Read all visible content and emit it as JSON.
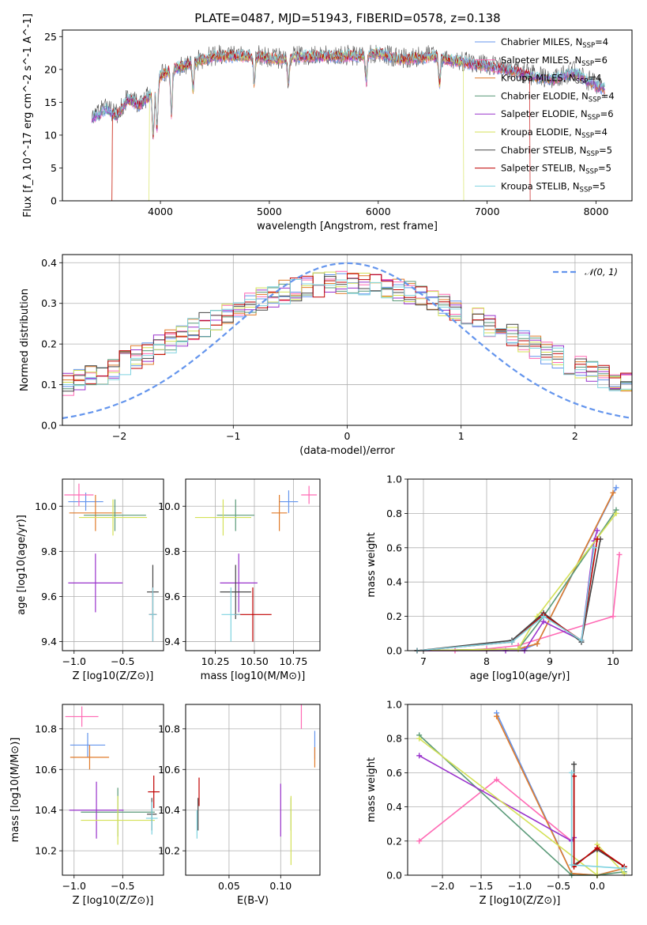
{
  "figure": {
    "title": "PLATE=0487, MJD=51943, FIBERID=0578, z=0.138"
  },
  "series": [
    {
      "name": "Chabrier MILES, N_SSP=4",
      "legend_main": "Chabrier MILES, N",
      "legend_sub": "SSP",
      "legend_tail": "=4",
      "color": "#6495ed"
    },
    {
      "name": "Salpeter MILES, N_SSP=6",
      "legend_main": "Salpeter MILES, N",
      "legend_sub": "SSP",
      "legend_tail": "=6",
      "color": "#ff69b4"
    },
    {
      "name": "Kroupa MILES, N_SSP=4",
      "legend_main": "Kroupa MILES, N",
      "legend_sub": "SSP",
      "legend_tail": "=4",
      "color": "#e07b2a"
    },
    {
      "name": "Chabrier ELODIE, N_SSP=4",
      "legend_main": "Chabrier ELODIE, N",
      "legend_sub": "SSP",
      "legend_tail": "=4",
      "color": "#5a9a78"
    },
    {
      "name": "Salpeter ELODIE, N_SSP=6",
      "legend_main": "Salpeter ELODIE, N",
      "legend_sub": "SSP",
      "legend_tail": "=6",
      "color": "#9932cc"
    },
    {
      "name": "Kroupa ELODIE, N_SSP=4",
      "legend_main": "Kroupa ELODIE, N",
      "legend_sub": "SSP",
      "legend_tail": "=4",
      "color": "#d4e157"
    },
    {
      "name": "Chabrier STELIB, N_SSP=5",
      "legend_main": "Chabrier STELIB, N",
      "legend_sub": "SSP",
      "legend_tail": "=5",
      "color": "#444444"
    },
    {
      "name": "Salpeter STELIB, N_SSP=5",
      "legend_main": "Salpeter STELIB, N",
      "legend_sub": "SSP",
      "legend_tail": "=5",
      "color": "#c00000"
    },
    {
      "name": "Kroupa STELIB, N_SSP=5",
      "legend_main": "Kroupa STELIB, N",
      "legend_sub": "SSP",
      "legend_tail": "=5",
      "color": "#7fd3e0"
    }
  ],
  "chart_data": [
    {
      "id": "spectrum",
      "type": "line",
      "xlabel": "wavelength [Angstrom, rest frame]",
      "ylabel": "Flux [f_λ 10^-17 erg cm^-2 s^-1 A^-1]",
      "xlim": [
        3100,
        8330
      ],
      "ylim": [
        0,
        26
      ],
      "xticks": [
        4000,
        5000,
        6000,
        7000,
        8000
      ],
      "yticks": [
        0,
        5,
        10,
        15,
        20,
        25
      ],
      "grid": false,
      "legend": "right",
      "spectrum_shape": {
        "x": [
          3370,
          3500,
          3600,
          3700,
          3800,
          3900,
          4000,
          4100,
          4200,
          4300,
          4400,
          4500,
          4700,
          4900,
          5100,
          5300,
          5500,
          5800,
          6000,
          6200,
          6500,
          6800,
          7000,
          7200,
          7400,
          7600,
          7800,
          8000,
          8080
        ],
        "y": [
          12.5,
          14.0,
          13.0,
          15.5,
          14.5,
          16.0,
          19.0,
          20.0,
          20.5,
          21.0,
          21.5,
          22.0,
          22.0,
          22.0,
          21.5,
          22.0,
          22.0,
          22.0,
          22.5,
          21.5,
          22.0,
          21.0,
          20.5,
          20.0,
          19.0,
          18.5,
          19.5,
          17.5,
          17.0
        ]
      },
      "absorption_lines": [
        3934,
        3969,
        4102,
        4300,
        4861,
        5175,
        5890,
        6563
      ],
      "cutoffs": [
        {
          "series": 2,
          "x_start": 3560
        },
        {
          "series": 5,
          "x_start": 3900,
          "x_end": 6780
        },
        {
          "series": 7,
          "x_start": 3560,
          "x_end": 7390
        }
      ]
    },
    {
      "id": "residuals",
      "type": "histogram",
      "xlabel": "(data-model)/error",
      "ylabel": "Normed distribution",
      "xlim": [
        -2.5,
        2.5
      ],
      "ylim": [
        0,
        0.42
      ],
      "xticks": [
        -2,
        -1,
        0,
        1,
        2
      ],
      "yticks": [
        0,
        0.1,
        0.2,
        0.3,
        0.4
      ],
      "grid": true,
      "bin_width": 0.1,
      "reference": {
        "label": "𝒩(0, 1)",
        "type": "gaussian",
        "mean": 0,
        "sigma": 1,
        "color": "#6495ed"
      }
    },
    {
      "id": "age_vs_z",
      "type": "errorbar",
      "xlabel": "Z [log10(Z/Z⊙)]",
      "ylabel": "age [log10(age/yr)]",
      "xlim": [
        -1.12,
        -0.08
      ],
      "ylim": [
        9.36,
        10.12
      ],
      "xticks": [
        -1.0,
        -0.5
      ],
      "yticks": [
        9.4,
        9.6,
        9.8,
        10.0
      ],
      "grid": true,
      "points": [
        {
          "s": 0,
          "x": -0.88,
          "xe": 0.18,
          "y": 10.02,
          "ye": 0.04
        },
        {
          "s": 1,
          "x": -0.95,
          "xe": 0.15,
          "y": 10.05,
          "ye": 0.05
        },
        {
          "s": 2,
          "x": -0.78,
          "xe": 0.27,
          "y": 9.97,
          "ye": 0.08
        },
        {
          "s": 3,
          "x": -0.58,
          "xe": 0.32,
          "y": 9.96,
          "ye": 0.07
        },
        {
          "s": 4,
          "x": -0.78,
          "xe": 0.28,
          "y": 9.66,
          "ye": 0.13
        },
        {
          "s": 5,
          "x": -0.6,
          "xe": 0.35,
          "y": 9.95,
          "ye": 0.08
        },
        {
          "s": 6,
          "x": -0.19,
          "xe": 0.06,
          "y": 9.62,
          "ye": 0.12
        },
        {
          "s": 7,
          "x": -0.19,
          "xe": 0.04,
          "y": 9.52,
          "ye": 0.12
        },
        {
          "s": 8,
          "x": -0.19,
          "xe": 0.04,
          "y": 9.52,
          "ye": 0.12
        }
      ]
    },
    {
      "id": "age_vs_mass",
      "type": "errorbar",
      "xlabel": "mass [log10(M/M⊙)]",
      "ylabel": "",
      "xlim": [
        10.06,
        10.92
      ],
      "ylim": [
        9.36,
        10.12
      ],
      "xticks": [
        10.25,
        10.5,
        10.75
      ],
      "yticks": [
        9.4,
        9.6,
        9.8,
        10.0
      ],
      "grid": true,
      "points": [
        {
          "s": 0,
          "x": 10.72,
          "xe": 0.06,
          "y": 10.02,
          "ye": 0.05
        },
        {
          "s": 1,
          "x": 10.85,
          "xe": 0.05,
          "y": 10.05,
          "ye": 0.04
        },
        {
          "s": 2,
          "x": 10.66,
          "xe": 0.05,
          "y": 9.97,
          "ye": 0.08
        },
        {
          "s": 3,
          "x": 10.38,
          "xe": 0.12,
          "y": 9.96,
          "ye": 0.07
        },
        {
          "s": 4,
          "x": 10.4,
          "xe": 0.12,
          "y": 9.66,
          "ye": 0.13
        },
        {
          "s": 5,
          "x": 10.3,
          "xe": 0.18,
          "y": 9.95,
          "ye": 0.08
        },
        {
          "s": 6,
          "x": 10.38,
          "xe": 0.1,
          "y": 9.62,
          "ye": 0.12
        },
        {
          "s": 7,
          "x": 10.49,
          "xe": 0.12,
          "y": 9.52,
          "ye": 0.12
        },
        {
          "s": 8,
          "x": 10.35,
          "xe": 0.06,
          "y": 9.52,
          "ye": 0.12
        }
      ]
    },
    {
      "id": "mass_weight_vs_age",
      "type": "line",
      "xlabel": "age [log10(age/yr)]",
      "ylabel": "mass weight",
      "xlim": [
        6.75,
        10.3
      ],
      "ylim": [
        0,
        1.0
      ],
      "xticks": [
        7,
        8,
        9,
        10
      ],
      "yticks": [
        0.0,
        0.2,
        0.4,
        0.6,
        0.8,
        1.0
      ],
      "grid": true,
      "series_values": [
        {
          "s": 0,
          "x": [
            6.9,
            8.6,
            8.8,
            10.05
          ],
          "y": [
            0.0,
            0.01,
            0.04,
            0.95
          ]
        },
        {
          "s": 1,
          "x": [
            6.9,
            7.5,
            8.0,
            8.5,
            10.0,
            10.1
          ],
          "y": [
            0.0,
            0.0,
            0.01,
            0.03,
            0.2,
            0.56
          ]
        },
        {
          "s": 2,
          "x": [
            6.9,
            8.5,
            8.8,
            10.0
          ],
          "y": [
            0.0,
            0.01,
            0.04,
            0.92
          ]
        },
        {
          "s": 3,
          "x": [
            6.9,
            8.5,
            8.9,
            10.05
          ],
          "y": [
            0.0,
            0.01,
            0.2,
            0.82
          ]
        },
        {
          "s": 4,
          "x": [
            6.9,
            8.3,
            8.6,
            8.9,
            9.5,
            9.7,
            9.75
          ],
          "y": [
            0.0,
            0.0,
            0.0,
            0.17,
            0.06,
            0.64,
            0.7
          ]
        },
        {
          "s": 5,
          "x": [
            6.9,
            8.5,
            8.8,
            10.05
          ],
          "y": [
            0.0,
            0.01,
            0.2,
            0.8
          ]
        },
        {
          "s": 6,
          "x": [
            6.9,
            8.4,
            8.9,
            9.5,
            9.8
          ],
          "y": [
            0.0,
            0.06,
            0.22,
            0.05,
            0.65
          ]
        },
        {
          "s": 7,
          "x": [
            6.9,
            8.4,
            8.9,
            9.5,
            9.75
          ],
          "y": [
            0.0,
            0.05,
            0.21,
            0.06,
            0.65
          ]
        },
        {
          "s": 8,
          "x": [
            6.9,
            8.4,
            8.9,
            9.5,
            9.7
          ],
          "y": [
            0.0,
            0.05,
            0.2,
            0.06,
            0.6
          ]
        }
      ]
    },
    {
      "id": "mass_vs_z",
      "type": "errorbar",
      "xlabel": "Z [log10(Z/Z⊙)]",
      "ylabel": "mass [log10(M/M⊙)]",
      "xlim": [
        -1.12,
        -0.08
      ],
      "ylim": [
        10.08,
        10.92
      ],
      "xticks": [
        -1.0,
        -0.5
      ],
      "yticks": [
        10.2,
        10.4,
        10.6,
        10.8
      ],
      "grid": true,
      "points": [
        {
          "s": 0,
          "x": -0.86,
          "xe": 0.18,
          "y": 10.72,
          "ye": 0.06
        },
        {
          "s": 1,
          "x": -0.92,
          "xe": 0.17,
          "y": 10.86,
          "ye": 0.05
        },
        {
          "s": 2,
          "x": -0.84,
          "xe": 0.2,
          "y": 10.66,
          "ye": 0.06
        },
        {
          "s": 3,
          "x": -0.55,
          "xe": 0.38,
          "y": 10.39,
          "ye": 0.12
        },
        {
          "s": 4,
          "x": -0.77,
          "xe": 0.28,
          "y": 10.4,
          "ye": 0.14
        },
        {
          "s": 5,
          "x": -0.55,
          "xe": 0.38,
          "y": 10.35,
          "ye": 0.12
        },
        {
          "s": 6,
          "x": -0.2,
          "xe": 0.05,
          "y": 10.38,
          "ye": 0.08
        },
        {
          "s": 7,
          "x": -0.18,
          "xe": 0.06,
          "y": 10.49,
          "ye": 0.08
        },
        {
          "s": 8,
          "x": -0.2,
          "xe": 0.06,
          "y": 10.36,
          "ye": 0.08
        }
      ]
    },
    {
      "id": "mass_vs_ebv",
      "type": "errorbar",
      "xlabel": "E(B-V)",
      "ylabel": "",
      "xlim": [
        0.008,
        0.138
      ],
      "ylim": [
        10.08,
        10.92
      ],
      "xticks": [
        0.05,
        0.1
      ],
      "yticks": [
        10.2,
        10.4,
        10.6,
        10.8
      ],
      "grid": true,
      "points": [
        {
          "s": 0,
          "x": 0.133,
          "xe": 0,
          "y": 10.72,
          "ye": 0.07
        },
        {
          "s": 1,
          "x": 0.12,
          "xe": 0,
          "y": 10.86,
          "ye": 0.06
        },
        {
          "s": 2,
          "x": 0.133,
          "xe": 0,
          "y": 10.66,
          "ye": 0.05
        },
        {
          "s": 3,
          "x": 0.11,
          "xe": 0,
          "y": 10.38,
          "ye": 0.08
        },
        {
          "s": 4,
          "x": 0.1,
          "xe": 0,
          "y": 10.4,
          "ye": 0.13
        },
        {
          "s": 5,
          "x": 0.11,
          "xe": 0,
          "y": 10.3,
          "ye": 0.17
        },
        {
          "s": 6,
          "x": 0.02,
          "xe": 0,
          "y": 10.38,
          "ye": 0.08
        },
        {
          "s": 7,
          "x": 0.021,
          "xe": 0,
          "y": 10.49,
          "ye": 0.07
        },
        {
          "s": 8,
          "x": 0.019,
          "xe": 0,
          "y": 10.33,
          "ye": 0.07
        }
      ]
    },
    {
      "id": "mass_weight_vs_z",
      "type": "line",
      "xlabel": "Z [log10(Z/Z⊙)]",
      "ylabel": "mass weight",
      "xlim": [
        -2.45,
        0.45
      ],
      "ylim": [
        0,
        1.0
      ],
      "xticks": [
        -2.0,
        -1.5,
        -1.0,
        -0.5,
        0.0
      ],
      "yticks": [
        0.0,
        0.2,
        0.4,
        0.6,
        0.8,
        1.0
      ],
      "grid": true,
      "series_values": [
        {
          "s": 0,
          "x": [
            -1.3,
            -0.33,
            0.0,
            0.35
          ],
          "y": [
            0.95,
            0.01,
            0.0,
            0.04
          ]
        },
        {
          "s": 1,
          "x": [
            -2.3,
            -1.3,
            -0.33
          ],
          "y": [
            0.2,
            0.56,
            0.2
          ]
        },
        {
          "s": 2,
          "x": [
            -1.3,
            -0.33,
            0.0,
            0.35
          ],
          "y": [
            0.93,
            0.01,
            0.0,
            0.04
          ]
        },
        {
          "s": 3,
          "x": [
            -2.3,
            -0.33,
            0.0,
            0.35
          ],
          "y": [
            0.82,
            0.0,
            0.0,
            0.02
          ]
        },
        {
          "s": 4,
          "x": [
            -2.3,
            -0.33,
            -0.3
          ],
          "y": [
            0.7,
            0.2,
            0.22
          ]
        },
        {
          "s": 5,
          "x": [
            -2.3,
            0.0,
            0.0,
            0.35
          ],
          "y": [
            0.8,
            0.0,
            0.18,
            0.01
          ]
        },
        {
          "s": 6,
          "x": [
            -0.3,
            -0.3,
            0.0,
            0.35
          ],
          "y": [
            0.65,
            0.06,
            0.15,
            0.05
          ]
        },
        {
          "s": 7,
          "x": [
            -0.3,
            -0.3,
            0.0,
            0.35
          ],
          "y": [
            0.58,
            0.05,
            0.16,
            0.05
          ]
        },
        {
          "s": 8,
          "x": [
            -0.33,
            -0.33,
            0.35
          ],
          "y": [
            0.6,
            0.06,
            0.04
          ]
        }
      ]
    }
  ]
}
